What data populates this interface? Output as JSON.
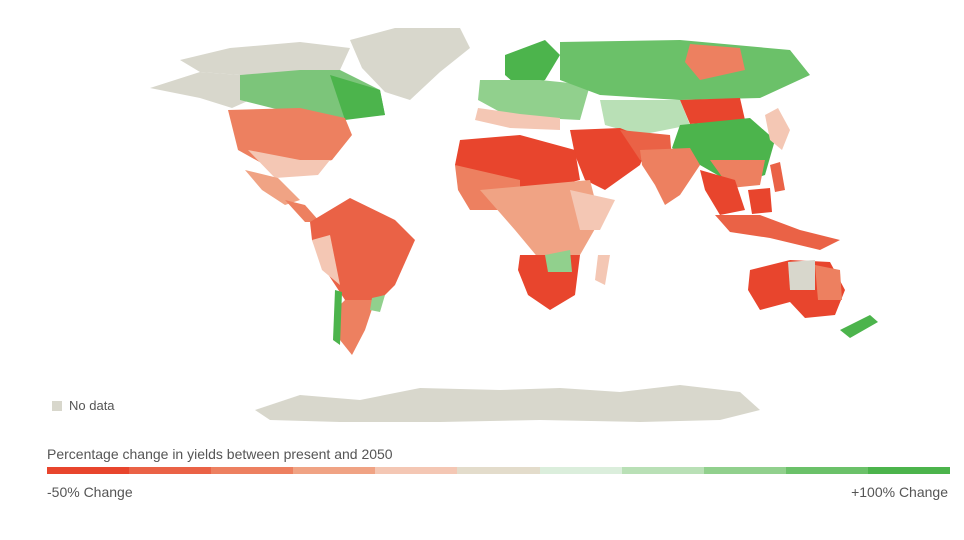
{
  "colors": {
    "no_data": "#d8d7cc",
    "scale": [
      "#e8452d",
      "#ea6246",
      "#ed8060",
      "#f0a384",
      "#f4c7b4",
      "#e3dccb",
      "#dbeedc",
      "#b9e0b6",
      "#91d08d",
      "#6bc169",
      "#4cb44c"
    ]
  },
  "legend": {
    "no_data_label": "No data",
    "title": "Percentage change in yields between present and 2050",
    "min_label": "-50% Change",
    "max_label": "+100% Change"
  }
}
